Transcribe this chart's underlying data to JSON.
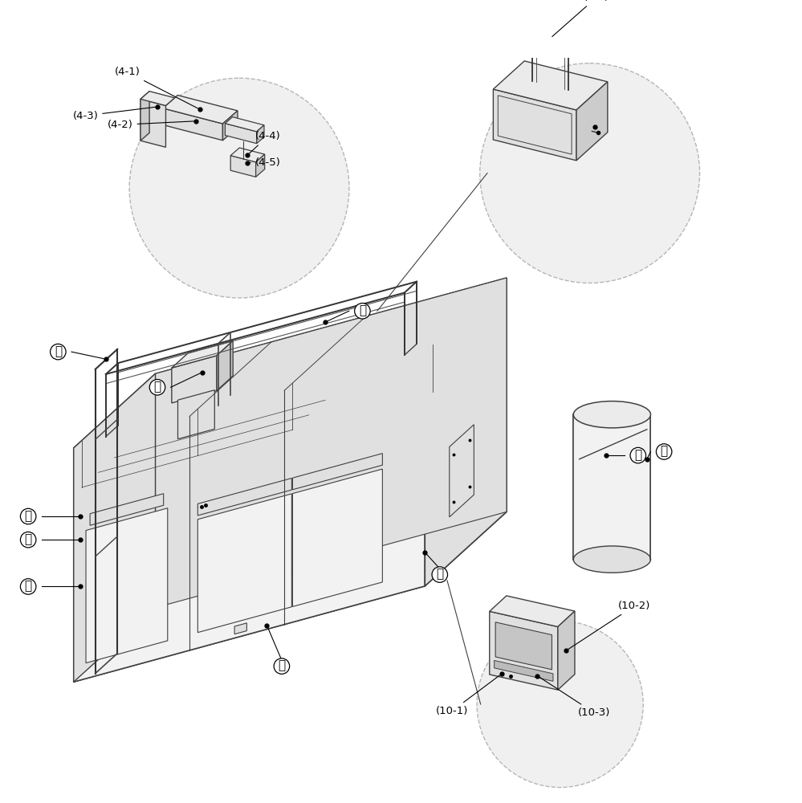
{
  "bg_color": "#ffffff",
  "lc": "#404040",
  "dc": "#000000",
  "tc": "#000000",
  "face_light": "#f2f2f2",
  "face_mid": "#e0e0e0",
  "face_dark": "#cccccc",
  "face_top": "#ebebeb",
  "circle_bg": "#ececec",
  "circle_edge": "#999999"
}
